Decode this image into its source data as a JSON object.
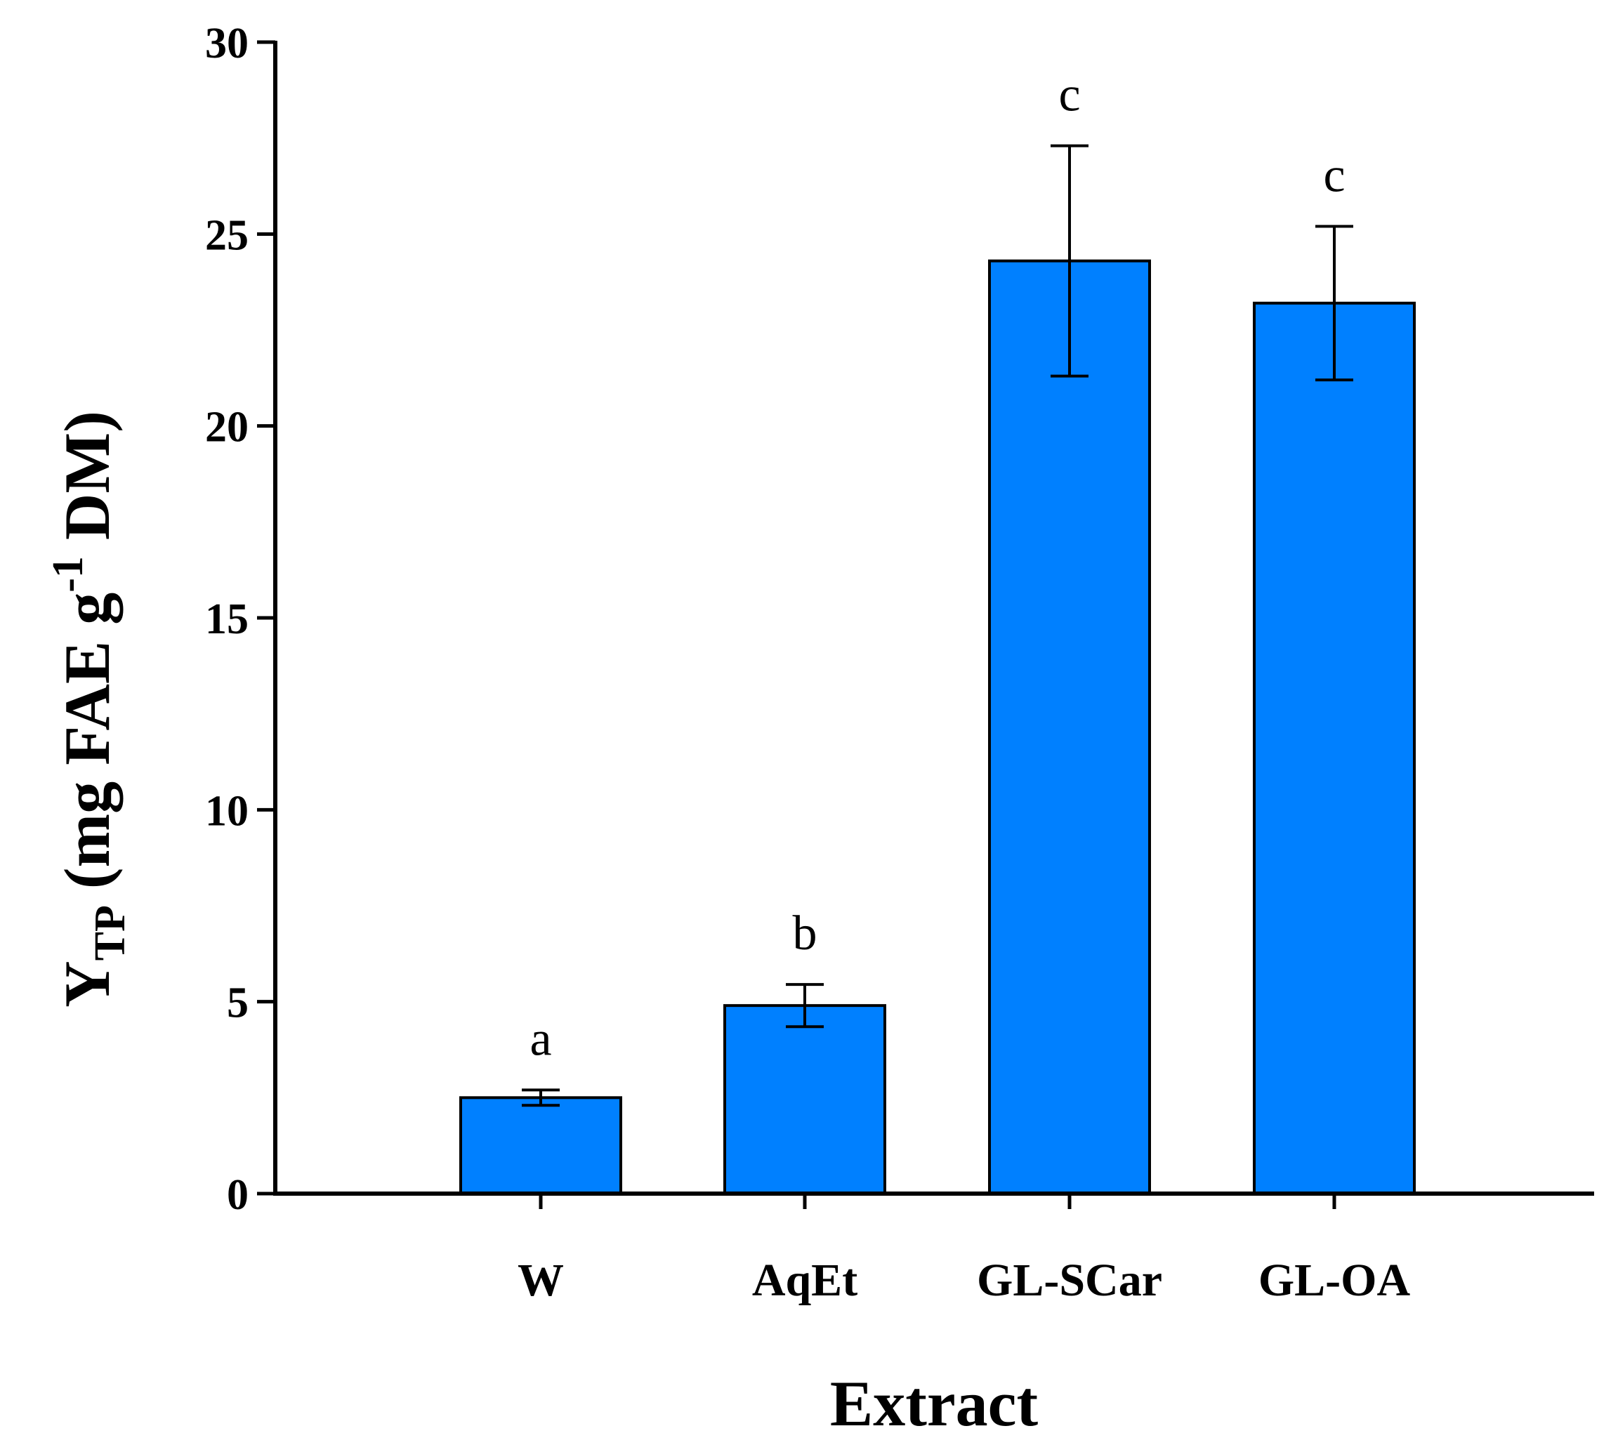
{
  "chart_data": {
    "type": "bar",
    "title": "",
    "xlabel": "Extract",
    "ylabel": {
      "main": "Y",
      "subscript": "TP",
      "prefix": " (mg FAE g",
      "superscript": "-1",
      "suffix": " DM)"
    },
    "ylim": [
      0,
      30
    ],
    "yticks": [
      0,
      5,
      10,
      15,
      20,
      25,
      30
    ],
    "categories": [
      "W",
      "AqEt",
      "GL-SCar",
      "GL-OA"
    ],
    "values": [
      2.5,
      4.9,
      24.3,
      23.2
    ],
    "errors": [
      0.2,
      0.55,
      3.0,
      2.0
    ],
    "significance": [
      "a",
      "b",
      "c",
      "c"
    ],
    "bar_color": "#0080ff"
  }
}
